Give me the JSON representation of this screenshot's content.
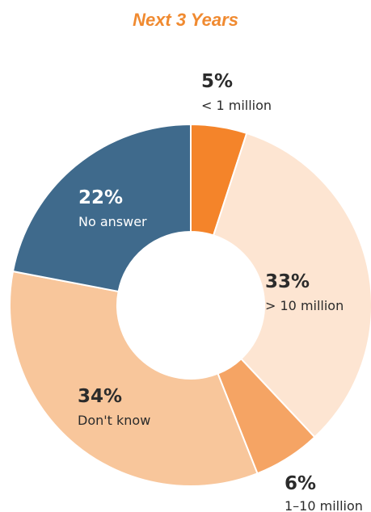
{
  "chart_data": {
    "type": "pie",
    "title": "Next 3 Years",
    "start": "12 o'clock, clockwise",
    "slices": [
      {
        "label": "< 1 million",
        "value": 5,
        "value_label": "5%",
        "color": "#f4842a",
        "text_color": "#2b2b2b"
      },
      {
        "label": "> 10 million",
        "value": 33,
        "value_label": "33%",
        "color": "#fde5d2",
        "text_color": "#2b2b2b"
      },
      {
        "label": "1–10 million",
        "value": 6,
        "value_label": "6%",
        "color": "#f5a464",
        "text_color": "#2b2b2b"
      },
      {
        "label": "Don't know",
        "value": 34,
        "value_label": "34%",
        "color": "#f8c69b",
        "text_color": "#2b2b2b"
      },
      {
        "label": "No answer",
        "value": 22,
        "value_label": "22%",
        "color": "#3f6a8c",
        "text_color": "#ffffff"
      }
    ]
  },
  "colors": {
    "title": "#f08a30",
    "separator": "#ffffff"
  }
}
